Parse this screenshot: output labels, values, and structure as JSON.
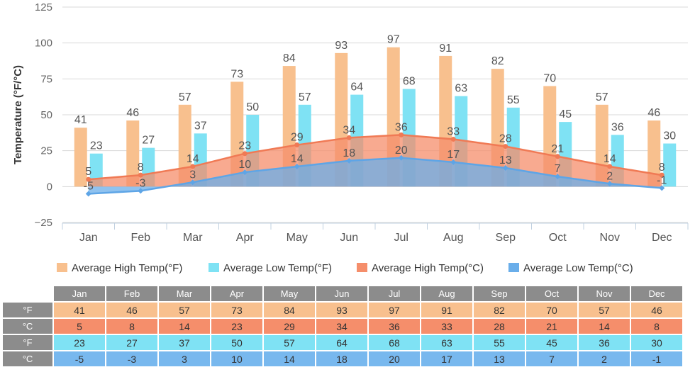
{
  "chart_data": {
    "type": "bar",
    "ylabel": "Temperature (°F/°C)",
    "ylim": [
      -25,
      125
    ],
    "yticks": [
      -25,
      0,
      25,
      50,
      75,
      100,
      125
    ],
    "categories": [
      "Jan",
      "Feb",
      "Mar",
      "Apr",
      "May",
      "Jun",
      "Jul",
      "Aug",
      "Sep",
      "Oct",
      "Nov",
      "Dec"
    ],
    "series": [
      {
        "name": "Average High Temp(°F)",
        "type": "bar",
        "color": "#f8c08e",
        "values": [
          41,
          46,
          57,
          73,
          84,
          93,
          97,
          91,
          82,
          70,
          57,
          46
        ]
      },
      {
        "name": "Average Low Temp(°F)",
        "type": "bar",
        "color": "#7fe2f4",
        "values": [
          23,
          27,
          37,
          50,
          57,
          64,
          68,
          63,
          55,
          45,
          36,
          30
        ]
      },
      {
        "name": "Average High Temp(°C)",
        "type": "area",
        "color": "#f58e6b",
        "values": [
          5,
          8,
          14,
          23,
          29,
          34,
          36,
          33,
          28,
          21,
          14,
          8
        ]
      },
      {
        "name": "Average Low Temp(°C)",
        "type": "area",
        "color": "#6aaeea",
        "values": [
          -5,
          -3,
          3,
          10,
          14,
          18,
          20,
          17,
          13,
          7,
          2,
          -1
        ]
      }
    ],
    "grid": true,
    "legend": "bottom"
  },
  "table": {
    "months": [
      "Jan",
      "Feb",
      "Mar",
      "Apr",
      "May",
      "Jun",
      "Jul",
      "Aug",
      "Sep",
      "Oct",
      "Nov",
      "Dec"
    ],
    "rows": [
      {
        "unit": "°F",
        "values": [
          "41",
          "46",
          "57",
          "73",
          "84",
          "93",
          "97",
          "91",
          "82",
          "70",
          "57",
          "46"
        ]
      },
      {
        "unit": "°C",
        "values": [
          "5",
          "8",
          "14",
          "23",
          "29",
          "34",
          "36",
          "33",
          "28",
          "21",
          "14",
          "8"
        ]
      },
      {
        "unit": "°F",
        "values": [
          "23",
          "27",
          "37",
          "50",
          "57",
          "64",
          "68",
          "63",
          "55",
          "45",
          "36",
          "30"
        ]
      },
      {
        "unit": "°C",
        "values": [
          "-5",
          "-3",
          "3",
          "10",
          "14",
          "18",
          "20",
          "17",
          "13",
          "7",
          "2",
          "-1"
        ]
      }
    ]
  }
}
